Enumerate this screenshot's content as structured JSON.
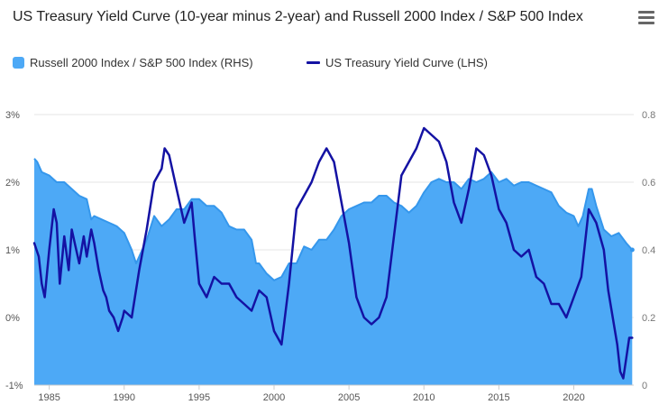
{
  "header": {
    "title": "US Treasury Yield Curve (10-year minus 2-year) and Russell 2000 Index / S&P 500 Index",
    "menu_icon": "hamburger-menu-icon"
  },
  "colors": {
    "area_fill": "#4da9f6",
    "area_line": "#3597ec",
    "yield_line": "#1412a3",
    "grid": "#e6e6e6"
  },
  "chart_data": {
    "type": "line",
    "title": "US Treasury Yield Curve (10-year minus 2-year) and Russell 2000 Index / S&P 500 Index",
    "legend": [
      {
        "name": "Russell 2000 Index / S&P 500 Index (RHS)",
        "kind": "area"
      },
      {
        "name": "US Treasury Yield Curve (LHS)",
        "kind": "line"
      }
    ],
    "x_range": [
      1984,
      2024
    ],
    "x_ticks": [
      {
        "value": 1985,
        "label": "1985"
      },
      {
        "value": 1990,
        "label": "1990"
      },
      {
        "value": 1995,
        "label": "1995"
      },
      {
        "value": 2000,
        "label": "2000"
      },
      {
        "value": 2005,
        "label": "2005"
      },
      {
        "value": 2010,
        "label": "2010"
      },
      {
        "value": 2015,
        "label": "2015"
      },
      {
        "value": 2020,
        "label": "2020"
      }
    ],
    "y_left": {
      "range": [
        -1,
        3
      ],
      "ticks": [
        {
          "value": 3,
          "label": "3%"
        },
        {
          "value": 2,
          "label": "2%"
        },
        {
          "value": 1,
          "label": "1%"
        },
        {
          "value": 0,
          "label": "0%"
        },
        {
          "value": -1,
          "label": "-1%"
        }
      ]
    },
    "y_right": {
      "range": [
        0,
        0.8
      ],
      "ticks": [
        {
          "value": 0.8,
          "label": "0.8"
        },
        {
          "value": 0.6,
          "label": "0.6"
        },
        {
          "value": 0.4,
          "label": "0.4"
        },
        {
          "value": 0.2,
          "label": "0.2"
        },
        {
          "value": 0,
          "label": "0"
        }
      ]
    },
    "series": [
      {
        "name": "Russell 2000 Index / S&P 500 Index (RHS)",
        "axis": "right",
        "type": "area",
        "x": [
          1984.0,
          1984.2,
          1984.5,
          1985.0,
          1985.5,
          1986.0,
          1986.5,
          1987.0,
          1987.5,
          1987.8,
          1988.0,
          1988.5,
          1989.0,
          1989.5,
          1990.0,
          1990.5,
          1990.8,
          1991.0,
          1991.5,
          1992.0,
          1992.5,
          1993.0,
          1993.5,
          1994.0,
          1994.5,
          1995.0,
          1995.5,
          1996.0,
          1996.5,
          1997.0,
          1997.5,
          1998.0,
          1998.5,
          1998.8,
          1999.0,
          1999.5,
          2000.0,
          2000.5,
          2001.0,
          2001.5,
          2002.0,
          2002.5,
          2003.0,
          2003.5,
          2004.0,
          2004.5,
          2005.0,
          2005.5,
          2006.0,
          2006.5,
          2007.0,
          2007.5,
          2008.0,
          2008.5,
          2009.0,
          2009.5,
          2010.0,
          2010.5,
          2011.0,
          2011.5,
          2012.0,
          2012.5,
          2013.0,
          2013.5,
          2014.0,
          2014.5,
          2015.0,
          2015.5,
          2016.0,
          2016.5,
          2017.0,
          2017.5,
          2018.0,
          2018.5,
          2019.0,
          2019.5,
          2020.0,
          2020.3,
          2020.6,
          2021.0,
          2021.2,
          2021.5,
          2022.0,
          2022.5,
          2023.0,
          2023.5,
          2023.9
        ],
        "values": [
          0.67,
          0.66,
          0.63,
          0.62,
          0.6,
          0.6,
          0.58,
          0.56,
          0.55,
          0.49,
          0.5,
          0.49,
          0.48,
          0.47,
          0.45,
          0.4,
          0.36,
          0.38,
          0.43,
          0.5,
          0.47,
          0.49,
          0.52,
          0.52,
          0.55,
          0.55,
          0.53,
          0.53,
          0.51,
          0.47,
          0.46,
          0.46,
          0.43,
          0.36,
          0.36,
          0.33,
          0.31,
          0.32,
          0.36,
          0.36,
          0.41,
          0.4,
          0.43,
          0.43,
          0.46,
          0.5,
          0.52,
          0.53,
          0.54,
          0.54,
          0.56,
          0.56,
          0.54,
          0.53,
          0.51,
          0.53,
          0.57,
          0.6,
          0.61,
          0.6,
          0.6,
          0.58,
          0.61,
          0.6,
          0.61,
          0.63,
          0.6,
          0.61,
          0.59,
          0.6,
          0.6,
          0.59,
          0.58,
          0.57,
          0.53,
          0.51,
          0.5,
          0.47,
          0.5,
          0.58,
          0.58,
          0.53,
          0.46,
          0.44,
          0.45,
          0.42,
          0.4
        ]
      },
      {
        "name": "US Treasury Yield Curve (LHS)",
        "axis": "left",
        "type": "line",
        "x": [
          1984.0,
          1984.3,
          1984.5,
          1984.7,
          1985.0,
          1985.3,
          1985.5,
          1985.7,
          1986.0,
          1986.3,
          1986.5,
          1986.7,
          1987.0,
          1987.3,
          1987.5,
          1987.8,
          1988.0,
          1988.3,
          1988.6,
          1988.8,
          1989.0,
          1989.3,
          1989.6,
          1989.9,
          1990.0,
          1990.5,
          1991.0,
          1991.5,
          1992.0,
          1992.5,
          1992.7,
          1993.0,
          1993.5,
          1994.0,
          1994.5,
          1994.7,
          1995.0,
          1995.5,
          1996.0,
          1996.5,
          1997.0,
          1997.5,
          1998.0,
          1998.5,
          1999.0,
          1999.5,
          2000.0,
          2000.5,
          2001.0,
          2001.5,
          2002.0,
          2002.5,
          2003.0,
          2003.5,
          2004.0,
          2004.5,
          2005.0,
          2005.5,
          2006.0,
          2006.5,
          2007.0,
          2007.5,
          2008.0,
          2008.5,
          2009.0,
          2009.5,
          2010.0,
          2010.5,
          2011.0,
          2011.5,
          2012.0,
          2012.5,
          2013.0,
          2013.5,
          2014.0,
          2014.5,
          2015.0,
          2015.5,
          2016.0,
          2016.5,
          2017.0,
          2017.5,
          2018.0,
          2018.5,
          2019.0,
          2019.5,
          2020.0,
          2020.5,
          2021.0,
          2021.5,
          2022.0,
          2022.3,
          2022.6,
          2022.9,
          2023.1,
          2023.3,
          2023.5,
          2023.7,
          2023.9
        ],
        "values": [
          1.1,
          0.9,
          0.5,
          0.3,
          1.0,
          1.6,
          1.4,
          0.5,
          1.2,
          0.7,
          1.3,
          1.1,
          0.8,
          1.2,
          0.9,
          1.3,
          1.1,
          0.7,
          0.4,
          0.3,
          0.1,
          0.0,
          -0.2,
          0.0,
          0.1,
          0.0,
          0.7,
          1.3,
          2.0,
          2.2,
          2.5,
          2.4,
          1.9,
          1.4,
          1.7,
          1.2,
          0.5,
          0.3,
          0.6,
          0.5,
          0.5,
          0.3,
          0.2,
          0.1,
          0.4,
          0.3,
          -0.2,
          -0.4,
          0.5,
          1.6,
          1.8,
          2.0,
          2.3,
          2.5,
          2.3,
          1.7,
          1.1,
          0.3,
          0.0,
          -0.1,
          0.0,
          0.3,
          1.2,
          2.1,
          2.3,
          2.5,
          2.8,
          2.7,
          2.6,
          2.3,
          1.7,
          1.4,
          1.9,
          2.5,
          2.4,
          2.1,
          1.6,
          1.4,
          1.0,
          0.9,
          1.0,
          0.6,
          0.5,
          0.2,
          0.2,
          0.0,
          0.3,
          0.6,
          1.6,
          1.4,
          1.0,
          0.4,
          0.0,
          -0.4,
          -0.8,
          -0.9,
          -0.6,
          -0.3,
          -0.3
        ]
      }
    ]
  }
}
